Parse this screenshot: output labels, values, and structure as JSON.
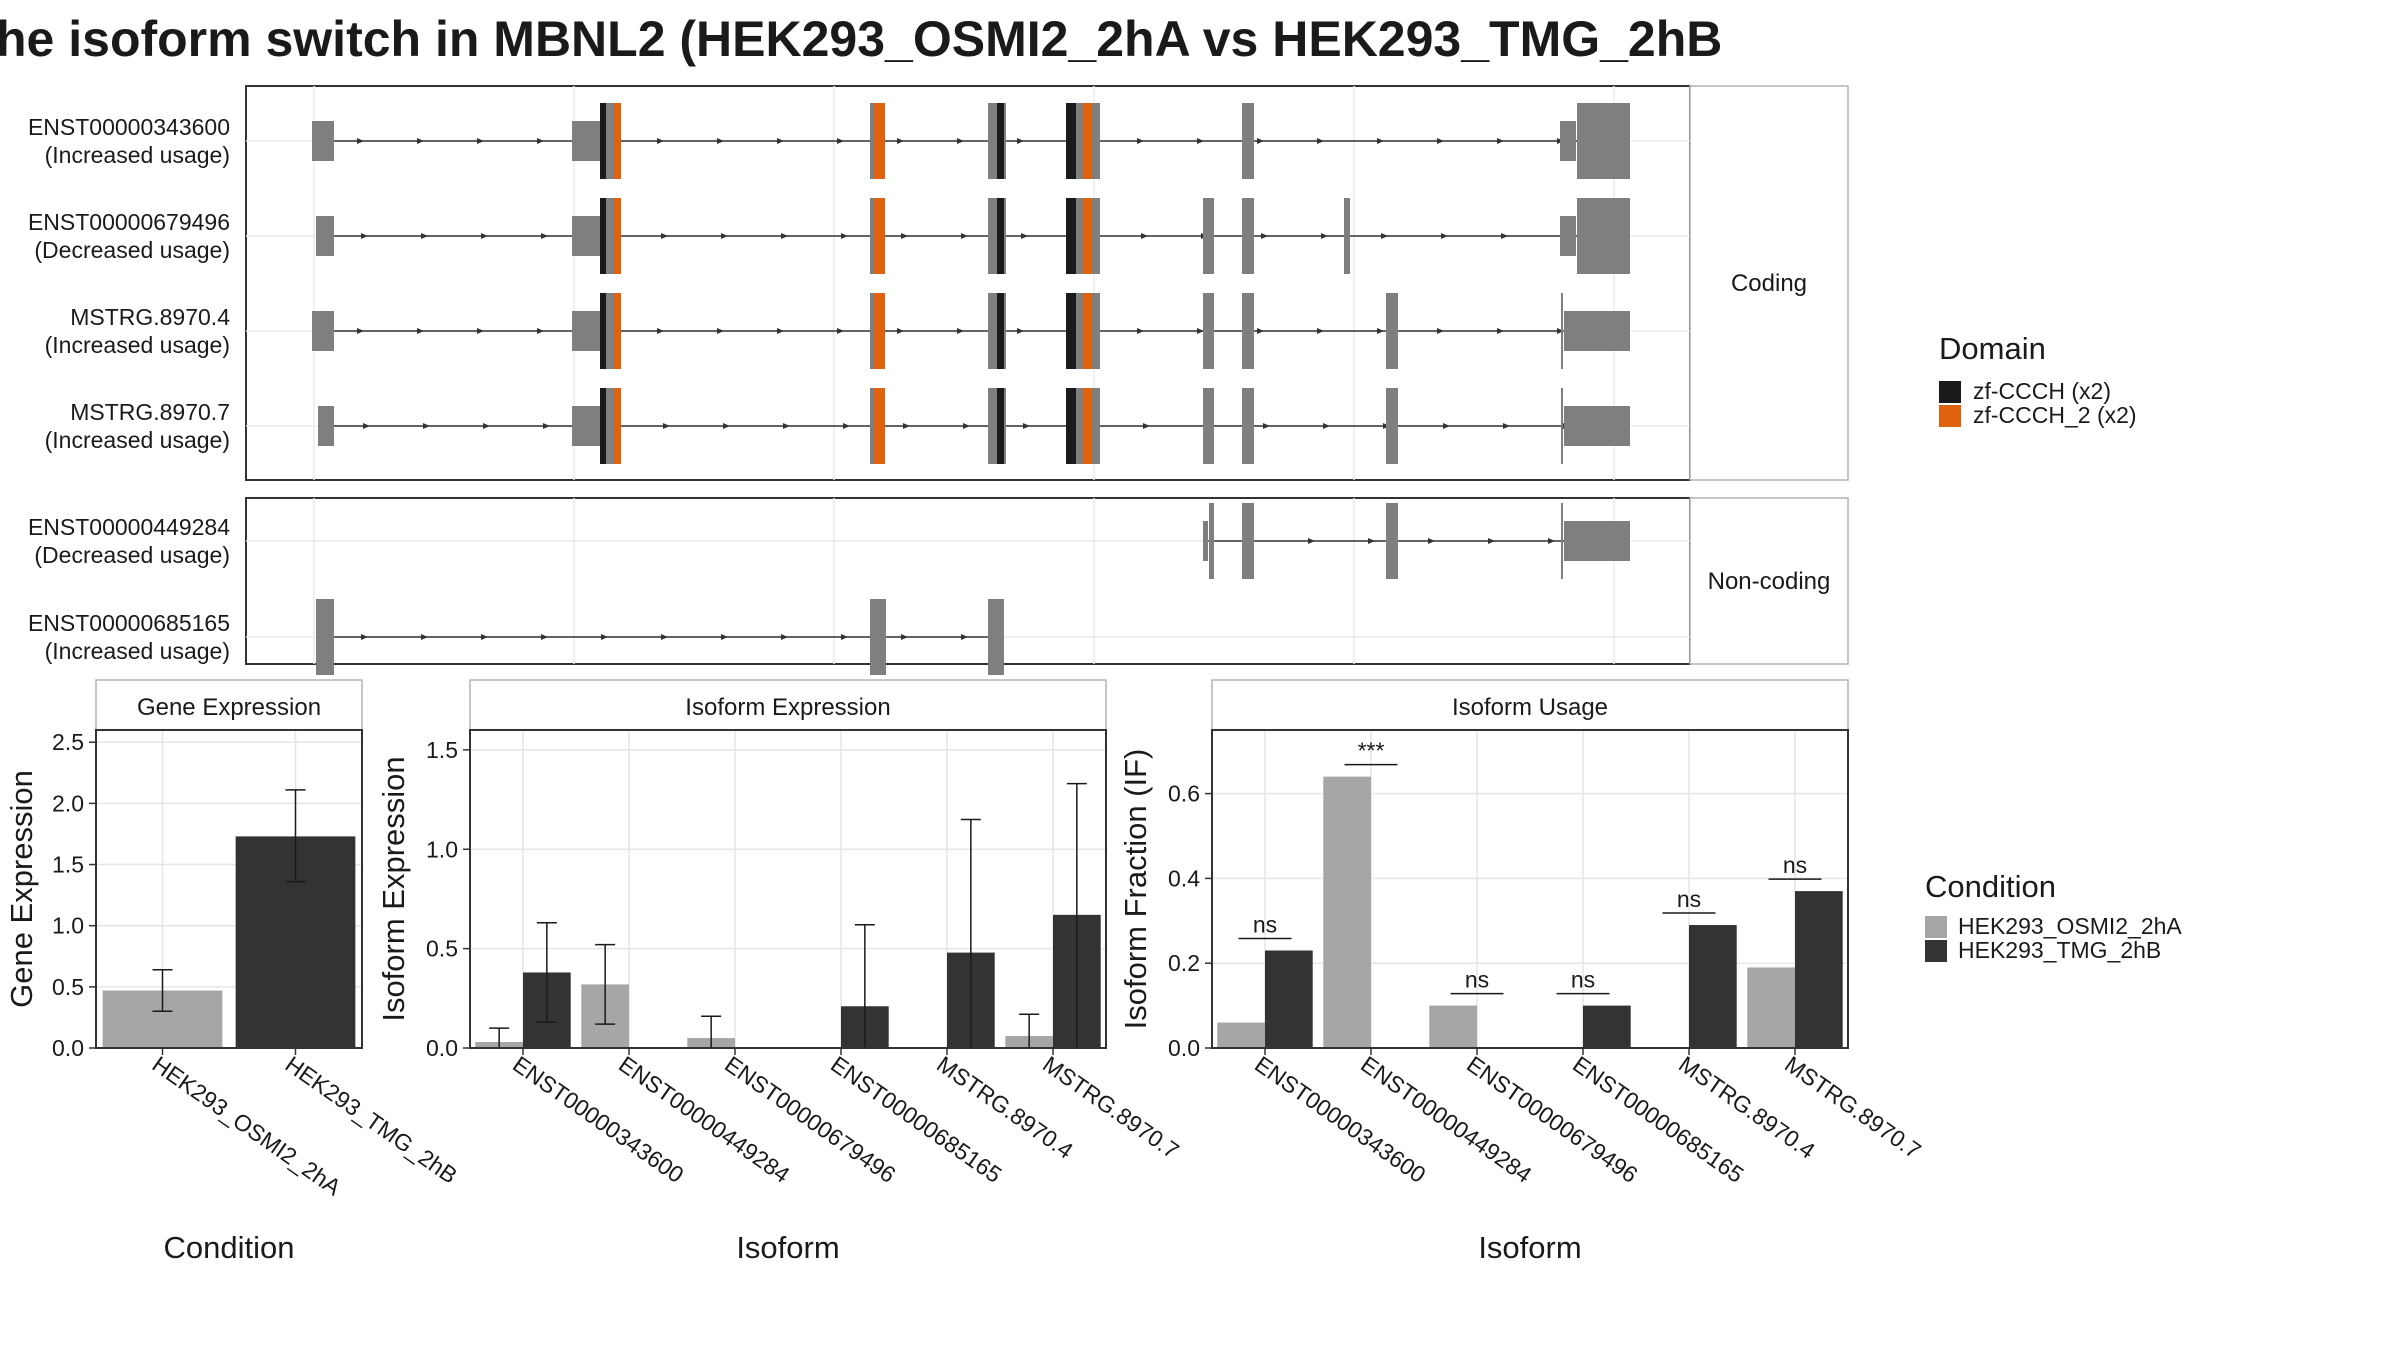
{
  "title": "he isoform switch in MBNL2 (HEK293_OSMI2_2hA vs HEK293_TMG_2hB",
  "structure": {
    "facets": [
      "Coding",
      "Non-coding"
    ],
    "coding": [
      {
        "id": "ENST00000343600",
        "usage": "(Increased usage)"
      },
      {
        "id": "ENST00000679496",
        "usage": "(Decreased usage)"
      },
      {
        "id": "MSTRG.8970.4",
        "usage": "(Increased usage)"
      },
      {
        "id": "MSTRG.8970.7",
        "usage": "(Increased usage)"
      }
    ],
    "noncoding": [
      {
        "id": "ENST00000449284",
        "usage": "(Decreased usage)"
      },
      {
        "id": "ENST00000685165",
        "usage": "(Increased usage)"
      }
    ]
  },
  "domain_legend": {
    "title": "Domain",
    "items": [
      {
        "label": "zf-CCCH (x2)",
        "color": "#1a1a1a"
      },
      {
        "label": "zf-CCCH_2 (x2)",
        "color": "#e0620d"
      }
    ]
  },
  "condition_legend": {
    "title": "Condition",
    "items": [
      {
        "label": "HEK293_OSMI2_2hA",
        "color": "#a6a6a6"
      },
      {
        "label": "HEK293_TMG_2hB",
        "color": "#333333"
      }
    ]
  },
  "colors": {
    "exon": "#7f7f7f",
    "osmi": "#a6a6a6",
    "tmg": "#333333",
    "zf": "#1a1a1a",
    "zf2": "#e0620d"
  },
  "chart_data": [
    {
      "type": "bar",
      "title": "Gene Expression",
      "xlabel": "Condition",
      "ylabel": "Gene Expression",
      "categories": [
        "HEK293_OSMI2_2hA",
        "HEK293_TMG_2hB"
      ],
      "values": [
        0.47,
        1.73
      ],
      "error": [
        [
          0.3,
          0.64
        ],
        [
          1.36,
          2.11
        ]
      ],
      "ylim": [
        0,
        2.6
      ],
      "yticks": [
        "0.0",
        "0.5",
        "1.0",
        "1.5",
        "2.0",
        "2.5"
      ]
    },
    {
      "type": "bar",
      "title": "Isoform Expression",
      "xlabel": "Isoform",
      "ylabel": "Isoform Expression",
      "categories": [
        "ENST00000343600",
        "ENST00000449284",
        "ENST00000679496",
        "ENST00000685165",
        "MSTRG.8970.4",
        "MSTRG.8970.7"
      ],
      "series": [
        {
          "name": "HEK293_OSMI2_2hA",
          "values": [
            0.03,
            0.32,
            0.05,
            0.0,
            0.0,
            0.06
          ],
          "error": [
            [
              0.0,
              0.1
            ],
            [
              0.12,
              0.52
            ],
            [
              0.0,
              0.16
            ],
            [
              0,
              0
            ],
            [
              0,
              0
            ],
            [
              0.0,
              0.17
            ]
          ]
        },
        {
          "name": "HEK293_TMG_2hB",
          "values": [
            0.38,
            0.0,
            0.0,
            0.21,
            0.48,
            0.67
          ],
          "error": [
            [
              0.13,
              0.63
            ],
            [
              0,
              0
            ],
            [
              0,
              0
            ],
            [
              0.0,
              0.62
            ],
            [
              0.0,
              1.15
            ],
            [
              0.0,
              1.33
            ]
          ]
        }
      ],
      "ylim": [
        0,
        1.6
      ],
      "yticks": [
        "0.0",
        "0.5",
        "1.0",
        "1.5"
      ]
    },
    {
      "type": "bar",
      "title": "Isoform Usage",
      "xlabel": "Isoform",
      "ylabel": "Isoform Fraction (IF)",
      "categories": [
        "ENST00000343600",
        "ENST00000449284",
        "ENST00000679496",
        "ENST00000685165",
        "MSTRG.8970.4",
        "MSTRG.8970.7"
      ],
      "series": [
        {
          "name": "HEK293_OSMI2_2hA",
          "values": [
            0.06,
            0.64,
            0.1,
            0.0,
            0.0,
            0.19
          ]
        },
        {
          "name": "HEK293_TMG_2hB",
          "values": [
            0.23,
            0.0,
            0.0,
            0.1,
            0.29,
            0.37
          ]
        }
      ],
      "significance": [
        "ns",
        "***",
        "ns",
        "ns",
        "ns",
        "ns"
      ],
      "ylim": [
        0,
        0.75
      ],
      "yticks": [
        "0.0",
        "0.2",
        "0.4",
        "0.6"
      ]
    }
  ]
}
